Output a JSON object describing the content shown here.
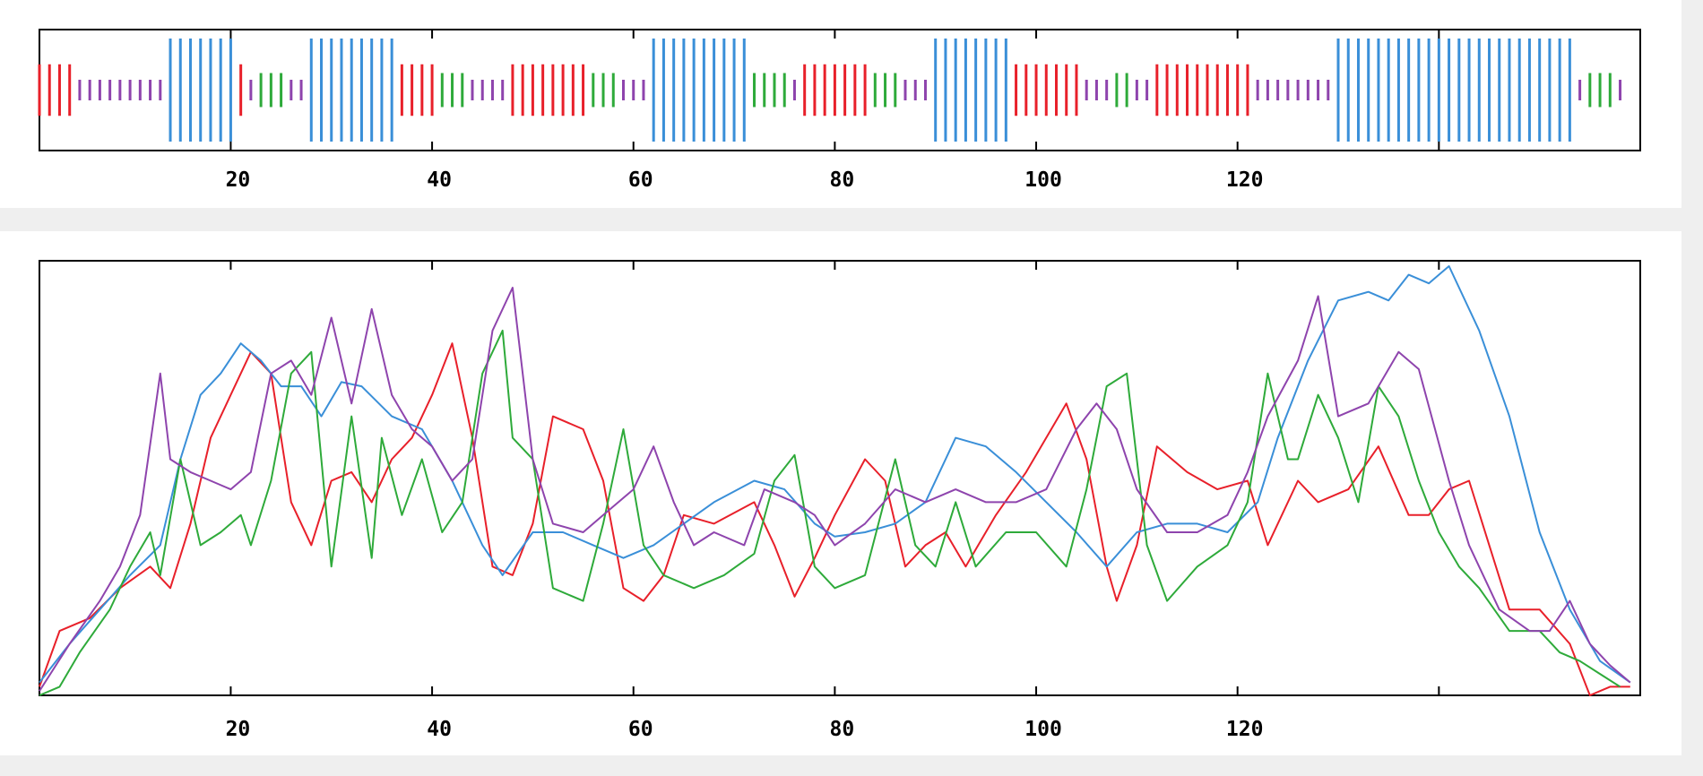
{
  "colors": {
    "A": "#e8202a",
    "C": "#3a8fd8",
    "G": "#2eaa3a",
    "T": "#8e44ad",
    "axis": "#000000"
  },
  "chart_data": [
    {
      "type": "bar",
      "name": "sequence-track",
      "title": "",
      "xlim": [
        1,
        160
      ],
      "ylim": [
        -1,
        1
      ],
      "x_ticks": [
        20,
        40,
        60,
        80,
        100,
        120,
        140
      ],
      "x_tick_labels": [
        "20",
        "40",
        "60",
        "80",
        "100",
        "120",
        ""
      ],
      "sequence": "AAAATTTTTTTTTCCCCCCCATGGGTTCCCCCCCCCAAAAGGGTTTTAAAAAAAAGGGTTTCCCCCCCCCCGGGGTAAAAAAAGGGTTTCCCCCCCCAAAAAAATTTGGTTAAAAAAAAAATTTTTTTTCCCCCCCCCCCCCCCCCCCCCCCCTGGGT",
      "bar_height_by_base": {
        "C": 1.0,
        "A": 0.5,
        "G": 0.33,
        "T": 0.2
      }
    },
    {
      "type": "line",
      "name": "signal-track",
      "title": "",
      "xlim": [
        1,
        160
      ],
      "ylim": [
        0,
        1
      ],
      "x_ticks": [
        20,
        40,
        60,
        80,
        100,
        120,
        140
      ],
      "x_tick_labels": [
        "20",
        "40",
        "60",
        "80",
        "100",
        "120",
        ""
      ],
      "series": [
        {
          "key": "A",
          "points": [
            [
              1,
              0.02
            ],
            [
              3,
              0.15
            ],
            [
              6,
              0.18
            ],
            [
              9,
              0.25
            ],
            [
              12,
              0.3
            ],
            [
              14,
              0.25
            ],
            [
              16,
              0.4
            ],
            [
              18,
              0.6
            ],
            [
              20,
              0.7
            ],
            [
              22,
              0.8
            ],
            [
              24,
              0.75
            ],
            [
              26,
              0.45
            ],
            [
              28,
              0.35
            ],
            [
              30,
              0.5
            ],
            [
              32,
              0.52
            ],
            [
              34,
              0.45
            ],
            [
              36,
              0.55
            ],
            [
              38,
              0.6
            ],
            [
              40,
              0.7
            ],
            [
              42,
              0.82
            ],
            [
              44,
              0.6
            ],
            [
              46,
              0.3
            ],
            [
              48,
              0.28
            ],
            [
              50,
              0.4
            ],
            [
              52,
              0.65
            ],
            [
              55,
              0.62
            ],
            [
              57,
              0.5
            ],
            [
              59,
              0.25
            ],
            [
              61,
              0.22
            ],
            [
              63,
              0.28
            ],
            [
              65,
              0.42
            ],
            [
              68,
              0.4
            ],
            [
              72,
              0.45
            ],
            [
              74,
              0.35
            ],
            [
              76,
              0.23
            ],
            [
              78,
              0.32
            ],
            [
              80,
              0.42
            ],
            [
              83,
              0.55
            ],
            [
              85,
              0.5
            ],
            [
              87,
              0.3
            ],
            [
              89,
              0.35
            ],
            [
              91,
              0.38
            ],
            [
              93,
              0.3
            ],
            [
              96,
              0.42
            ],
            [
              99,
              0.52
            ],
            [
              103,
              0.68
            ],
            [
              105,
              0.55
            ],
            [
              107,
              0.3
            ],
            [
              108,
              0.22
            ],
            [
              110,
              0.35
            ],
            [
              112,
              0.58
            ],
            [
              115,
              0.52
            ],
            [
              118,
              0.48
            ],
            [
              121,
              0.5
            ],
            [
              123,
              0.35
            ],
            [
              126,
              0.5
            ],
            [
              128,
              0.45
            ],
            [
              131,
              0.48
            ],
            [
              134,
              0.58
            ],
            [
              137,
              0.42
            ],
            [
              139,
              0.42
            ],
            [
              141,
              0.48
            ],
            [
              143,
              0.5
            ],
            [
              145,
              0.35
            ],
            [
              147,
              0.2
            ],
            [
              150,
              0.2
            ],
            [
              153,
              0.12
            ],
            [
              155,
              0.0
            ],
            [
              157,
              0.02
            ],
            [
              159,
              0.02
            ]
          ]
        },
        {
          "key": "C",
          "points": [
            [
              1,
              0.03
            ],
            [
              4,
              0.12
            ],
            [
              7,
              0.2
            ],
            [
              10,
              0.28
            ],
            [
              13,
              0.35
            ],
            [
              15,
              0.55
            ],
            [
              17,
              0.7
            ],
            [
              19,
              0.75
            ],
            [
              21,
              0.82
            ],
            [
              23,
              0.78
            ],
            [
              25,
              0.72
            ],
            [
              27,
              0.72
            ],
            [
              29,
              0.65
            ],
            [
              31,
              0.73
            ],
            [
              33,
              0.72
            ],
            [
              36,
              0.65
            ],
            [
              39,
              0.62
            ],
            [
              42,
              0.5
            ],
            [
              45,
              0.35
            ],
            [
              47,
              0.28
            ],
            [
              50,
              0.38
            ],
            [
              53,
              0.38
            ],
            [
              56,
              0.35
            ],
            [
              59,
              0.32
            ],
            [
              62,
              0.35
            ],
            [
              65,
              0.4
            ],
            [
              68,
              0.45
            ],
            [
              72,
              0.5
            ],
            [
              75,
              0.48
            ],
            [
              78,
              0.4
            ],
            [
              80,
              0.37
            ],
            [
              83,
              0.38
            ],
            [
              86,
              0.4
            ],
            [
              89,
              0.45
            ],
            [
              92,
              0.6
            ],
            [
              95,
              0.58
            ],
            [
              98,
              0.52
            ],
            [
              101,
              0.45
            ],
            [
              104,
              0.38
            ],
            [
              107,
              0.3
            ],
            [
              110,
              0.38
            ],
            [
              113,
              0.4
            ],
            [
              116,
              0.4
            ],
            [
              119,
              0.38
            ],
            [
              122,
              0.45
            ],
            [
              124,
              0.6
            ],
            [
              127,
              0.78
            ],
            [
              130,
              0.92
            ],
            [
              133,
              0.94
            ],
            [
              135,
              0.92
            ],
            [
              137,
              0.98
            ],
            [
              139,
              0.96
            ],
            [
              141,
              1.0
            ],
            [
              144,
              0.85
            ],
            [
              147,
              0.65
            ],
            [
              150,
              0.38
            ],
            [
              153,
              0.2
            ],
            [
              156,
              0.08
            ],
            [
              159,
              0.03
            ]
          ]
        },
        {
          "key": "G",
          "points": [
            [
              1,
              0.0
            ],
            [
              3,
              0.02
            ],
            [
              5,
              0.1
            ],
            [
              8,
              0.2
            ],
            [
              10,
              0.3
            ],
            [
              12,
              0.38
            ],
            [
              13,
              0.28
            ],
            [
              15,
              0.55
            ],
            [
              17,
              0.35
            ],
            [
              19,
              0.38
            ],
            [
              21,
              0.42
            ],
            [
              22,
              0.35
            ],
            [
              24,
              0.5
            ],
            [
              26,
              0.75
            ],
            [
              28,
              0.8
            ],
            [
              30,
              0.3
            ],
            [
              32,
              0.65
            ],
            [
              34,
              0.32
            ],
            [
              35,
              0.6
            ],
            [
              37,
              0.42
            ],
            [
              39,
              0.55
            ],
            [
              41,
              0.38
            ],
            [
              43,
              0.45
            ],
            [
              45,
              0.75
            ],
            [
              47,
              0.85
            ],
            [
              48,
              0.6
            ],
            [
              50,
              0.55
            ],
            [
              52,
              0.25
            ],
            [
              55,
              0.22
            ],
            [
              57,
              0.4
            ],
            [
              59,
              0.62
            ],
            [
              61,
              0.35
            ],
            [
              63,
              0.28
            ],
            [
              66,
              0.25
            ],
            [
              69,
              0.28
            ],
            [
              72,
              0.33
            ],
            [
              74,
              0.5
            ],
            [
              76,
              0.56
            ],
            [
              78,
              0.3
            ],
            [
              80,
              0.25
            ],
            [
              83,
              0.28
            ],
            [
              86,
              0.55
            ],
            [
              88,
              0.35
            ],
            [
              90,
              0.3
            ],
            [
              92,
              0.45
            ],
            [
              94,
              0.3
            ],
            [
              97,
              0.38
            ],
            [
              100,
              0.38
            ],
            [
              103,
              0.3
            ],
            [
              105,
              0.48
            ],
            [
              107,
              0.72
            ],
            [
              109,
              0.75
            ],
            [
              111,
              0.35
            ],
            [
              113,
              0.22
            ],
            [
              116,
              0.3
            ],
            [
              119,
              0.35
            ],
            [
              121,
              0.45
            ],
            [
              123,
              0.75
            ],
            [
              125,
              0.55
            ],
            [
              126,
              0.55
            ],
            [
              128,
              0.7
            ],
            [
              130,
              0.6
            ],
            [
              132,
              0.45
            ],
            [
              134,
              0.72
            ],
            [
              136,
              0.65
            ],
            [
              138,
              0.5
            ],
            [
              140,
              0.38
            ],
            [
              142,
              0.3
            ],
            [
              144,
              0.25
            ],
            [
              147,
              0.15
            ],
            [
              150,
              0.15
            ],
            [
              152,
              0.1
            ],
            [
              154,
              0.08
            ],
            [
              156,
              0.05
            ],
            [
              158,
              0.02
            ]
          ]
        },
        {
          "key": "T",
          "points": [
            [
              1,
              0.01
            ],
            [
              4,
              0.12
            ],
            [
              7,
              0.22
            ],
            [
              9,
              0.3
            ],
            [
              11,
              0.42
            ],
            [
              13,
              0.75
            ],
            [
              14,
              0.55
            ],
            [
              16,
              0.52
            ],
            [
              18,
              0.5
            ],
            [
              20,
              0.48
            ],
            [
              22,
              0.52
            ],
            [
              24,
              0.75
            ],
            [
              26,
              0.78
            ],
            [
              28,
              0.7
            ],
            [
              30,
              0.88
            ],
            [
              32,
              0.68
            ],
            [
              34,
              0.9
            ],
            [
              36,
              0.7
            ],
            [
              38,
              0.62
            ],
            [
              40,
              0.58
            ],
            [
              42,
              0.5
            ],
            [
              44,
              0.55
            ],
            [
              46,
              0.85
            ],
            [
              48,
              0.95
            ],
            [
              50,
              0.55
            ],
            [
              52,
              0.4
            ],
            [
              55,
              0.38
            ],
            [
              57,
              0.42
            ],
            [
              60,
              0.48
            ],
            [
              62,
              0.58
            ],
            [
              64,
              0.45
            ],
            [
              66,
              0.35
            ],
            [
              68,
              0.38
            ],
            [
              71,
              0.35
            ],
            [
              73,
              0.48
            ],
            [
              76,
              0.45
            ],
            [
              78,
              0.42
            ],
            [
              80,
              0.35
            ],
            [
              83,
              0.4
            ],
            [
              86,
              0.48
            ],
            [
              89,
              0.45
            ],
            [
              92,
              0.48
            ],
            [
              95,
              0.45
            ],
            [
              98,
              0.45
            ],
            [
              101,
              0.48
            ],
            [
              104,
              0.62
            ],
            [
              106,
              0.68
            ],
            [
              108,
              0.62
            ],
            [
              110,
              0.48
            ],
            [
              113,
              0.38
            ],
            [
              116,
              0.38
            ],
            [
              119,
              0.42
            ],
            [
              121,
              0.52
            ],
            [
              123,
              0.65
            ],
            [
              126,
              0.78
            ],
            [
              128,
              0.93
            ],
            [
              130,
              0.65
            ],
            [
              133,
              0.68
            ],
            [
              136,
              0.8
            ],
            [
              138,
              0.76
            ],
            [
              141,
              0.5
            ],
            [
              143,
              0.35
            ],
            [
              146,
              0.2
            ],
            [
              149,
              0.15
            ],
            [
              151,
              0.15
            ],
            [
              153,
              0.22
            ],
            [
              155,
              0.12
            ],
            [
              157,
              0.07
            ],
            [
              159,
              0.03
            ]
          ]
        }
      ]
    }
  ]
}
